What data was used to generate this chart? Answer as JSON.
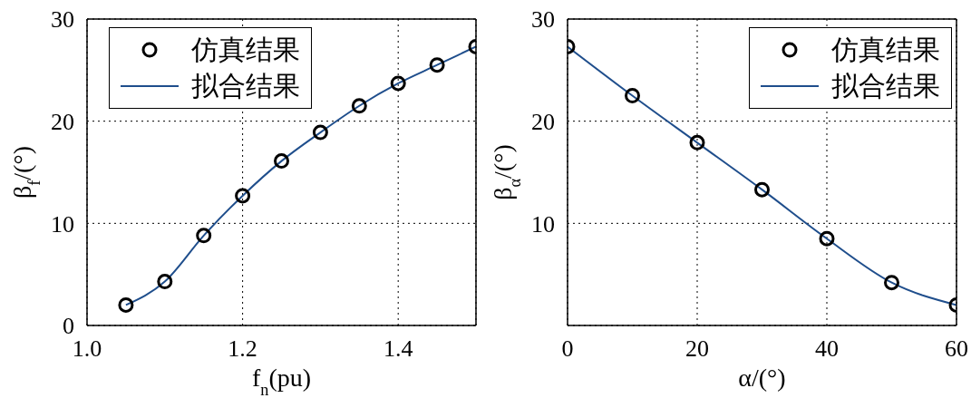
{
  "chart_data": [
    {
      "type": "scatter",
      "xlabel": "f$_{n}$(pu)",
      "ylabel": "β$_{f}$/(°)",
      "xlim": [
        1.0,
        1.5
      ],
      "xticks": [
        {
          "value": 1.0,
          "label": "1.0"
        },
        {
          "value": 1.2,
          "label": "1.2"
        },
        {
          "value": 1.4,
          "label": "1.4"
        }
      ],
      "ylim": [
        0,
        30
      ],
      "yticks": [
        0,
        10,
        20,
        30
      ],
      "grid": true,
      "legend": "top left",
      "line_style": "solid",
      "series": [
        {
          "name": "仿真结果",
          "marker": "circle",
          "color": "#000000",
          "x": [
            1.05,
            1.1,
            1.15,
            1.2,
            1.25,
            1.3,
            1.35,
            1.4,
            1.45,
            1.5
          ],
          "values": [
            2.0,
            4.3,
            8.8,
            12.7,
            16.1,
            18.9,
            21.5,
            23.7,
            25.5,
            27.3
          ]
        },
        {
          "name": "拟合结果",
          "type": "line",
          "color": "#1f4e8c",
          "x": [
            1.05,
            1.1,
            1.15,
            1.2,
            1.25,
            1.3,
            1.35,
            1.4,
            1.45,
            1.5
          ],
          "values": [
            2.0,
            4.3,
            8.8,
            12.7,
            16.1,
            18.9,
            21.5,
            23.7,
            25.5,
            27.3
          ]
        }
      ]
    },
    {
      "type": "scatter",
      "xlabel": "α/(°)",
      "ylabel": "β$_{α}$/(°)",
      "xlim": [
        0,
        60
      ],
      "xticks": [
        0,
        20,
        40,
        60
      ],
      "ylim": [
        0,
        30
      ],
      "yticks": [
        {
          "value": 0,
          "label": null
        },
        10,
        20,
        30
      ],
      "grid": true,
      "legend": "top right",
      "line_style": "solid",
      "series": [
        {
          "name": "仿真结果",
          "marker": "circle",
          "color": "#000000",
          "x": [
            0,
            10,
            20,
            30,
            40,
            50,
            60
          ],
          "values": [
            27.3,
            22.5,
            17.9,
            13.3,
            8.5,
            4.2,
            2.0
          ]
        },
        {
          "name": "拟合结果",
          "type": "line",
          "color": "#1f4e8c",
          "x": [
            0,
            10,
            20,
            30,
            40,
            50,
            60
          ],
          "values": [
            27.3,
            22.5,
            17.9,
            13.3,
            8.5,
            4.2,
            2.0
          ]
        }
      ]
    }
  ]
}
